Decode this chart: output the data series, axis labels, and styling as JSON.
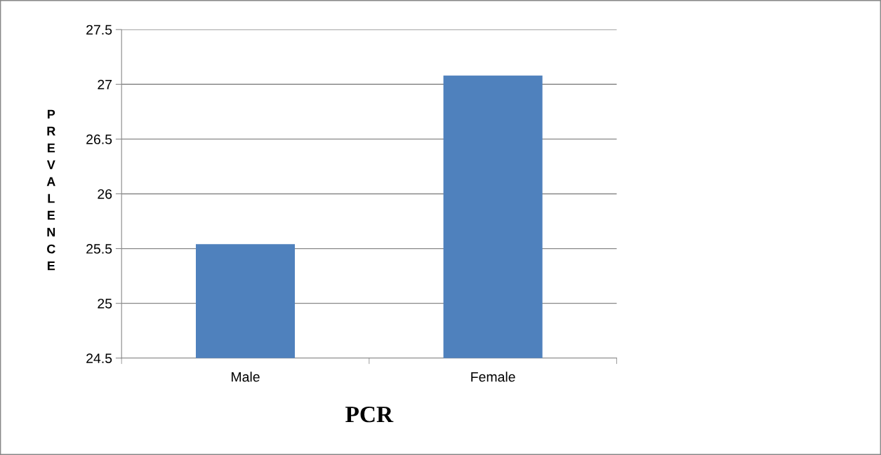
{
  "chart_data": {
    "type": "bar",
    "xlabel": "PCR",
    "ylabel": "PREVALENCE",
    "categories": [
      "Male",
      "Female"
    ],
    "series": [
      {
        "color": "#4f81bd",
        "values": [
          25.54,
          27.08
        ]
      }
    ],
    "ylim": [
      24.5,
      27.5
    ],
    "yticks": [
      {
        "value": 24.5,
        "label": "24.5"
      },
      {
        "value": 25,
        "label": "25"
      },
      {
        "value": 25.5,
        "label": "25.5"
      },
      {
        "value": 26,
        "label": "26"
      },
      {
        "value": 26.5,
        "label": "26.5"
      },
      {
        "value": 27,
        "label": "27"
      },
      {
        "value": 27.5,
        "label": "27.5"
      }
    ],
    "grid": "y",
    "legend": false
  }
}
